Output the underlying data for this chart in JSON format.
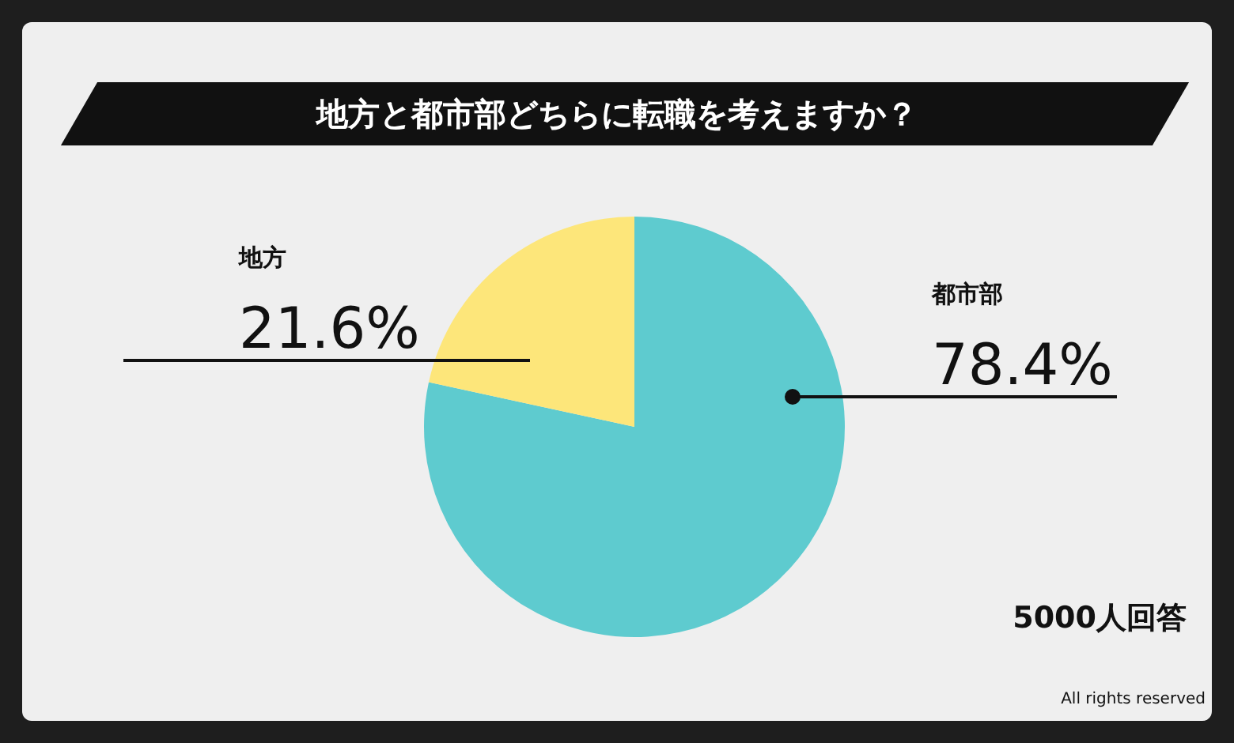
{
  "chart_data": {
    "type": "pie",
    "title": "地方と都市部どちらに転職を考えますか？",
    "categories": [
      "都市部",
      "地方"
    ],
    "values": [
      78.4,
      21.6
    ],
    "colors": [
      "#5ecbcf",
      "#fde67a"
    ],
    "value_labels": [
      "78.4%",
      "21.6%"
    ],
    "legend": false,
    "annotations": [
      "5000人回答",
      "All rights reserved"
    ]
  }
}
